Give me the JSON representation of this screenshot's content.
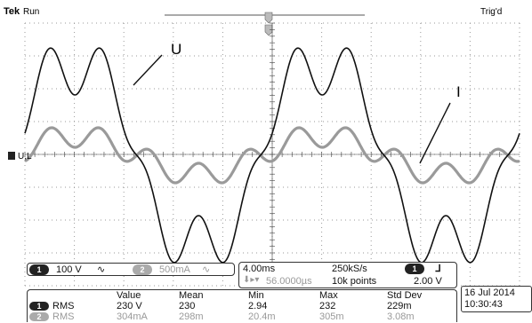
{
  "header": {
    "brand": "Tek",
    "state": "Run",
    "trigger_status": "Trig'd",
    "ref_marker": "U,L"
  },
  "annotations": {
    "voltage_label": "U",
    "current_label": "I"
  },
  "channels": {
    "ch1": {
      "number": "1",
      "scale": "100 V",
      "coupling": "∿"
    },
    "ch2": {
      "number": "2",
      "scale": "500mA",
      "coupling": "∿"
    }
  },
  "timebase": {
    "scale": "4.00ms",
    "sample_rate": "250kS/s",
    "delay": "56.0000µs",
    "record_length": "10k points",
    "trigger_channel": "1",
    "trigger_slope": "ᒧ",
    "trigger_level": "2.00 V"
  },
  "measurements": {
    "headers": [
      "Value",
      "Mean",
      "Min",
      "Max",
      "Std Dev"
    ],
    "rows": [
      {
        "channel": "1",
        "name": "RMS",
        "value": "230 V",
        "mean": "230",
        "min": "2.94",
        "max": "232",
        "std_dev": "229m"
      },
      {
        "channel": "2",
        "name": "RMS",
        "value": "304mA",
        "mean": "298m",
        "min": "20.4m",
        "max": "305m",
        "std_dev": "3.08m"
      }
    ]
  },
  "datetime": {
    "date": "16 Jul  2014",
    "time": "10:30:43"
  },
  "colors": {
    "voltage_trace": "#111111",
    "current_trace": "#9a9a9a",
    "grid": "#9a9a9a"
  }
}
